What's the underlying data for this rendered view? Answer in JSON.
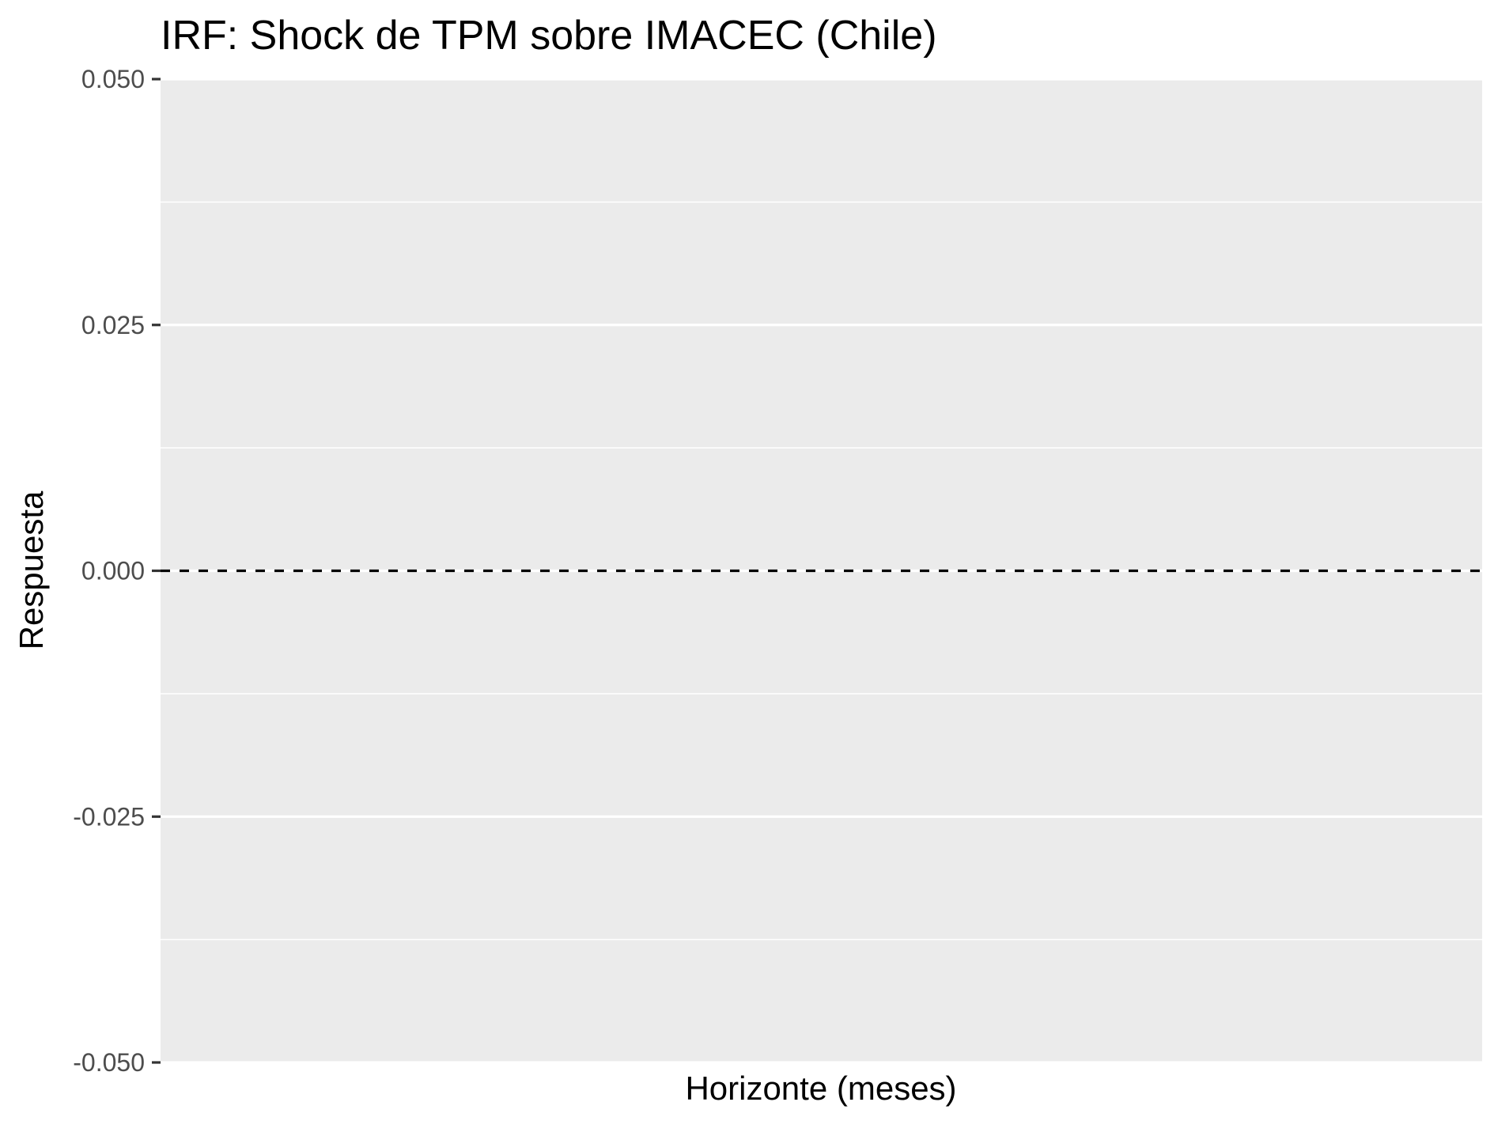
{
  "chart_data": {
    "type": "line",
    "title": "IRF: Shock de TPM sobre IMACEC (Chile)",
    "xlabel": "Horizonte (meses)",
    "ylabel": "Respuesta",
    "ylim": [
      -0.05,
      0.05
    ],
    "y_ticks": [
      {
        "value": -0.05,
        "label": "-0.050"
      },
      {
        "value": -0.025,
        "label": "-0.025"
      },
      {
        "value": 0,
        "label": "0.000"
      },
      {
        "value": 0.025,
        "label": "0.025"
      },
      {
        "value": 0.05,
        "label": "0.050"
      }
    ],
    "y_minor_breaks": [
      -0.0375,
      -0.0125,
      0.0125,
      0.0375
    ],
    "x_ticks": [],
    "series": [],
    "reference_lines": [
      {
        "orientation": "horizontal",
        "value": 0,
        "style": "dashed",
        "color": "#000000"
      }
    ],
    "grid": true,
    "legend": "none",
    "colors": {
      "panel_background": "#ebebeb",
      "grid_line": "#ffffff",
      "tick_text": "#4d4d4d",
      "tick_mark": "#333333"
    }
  }
}
